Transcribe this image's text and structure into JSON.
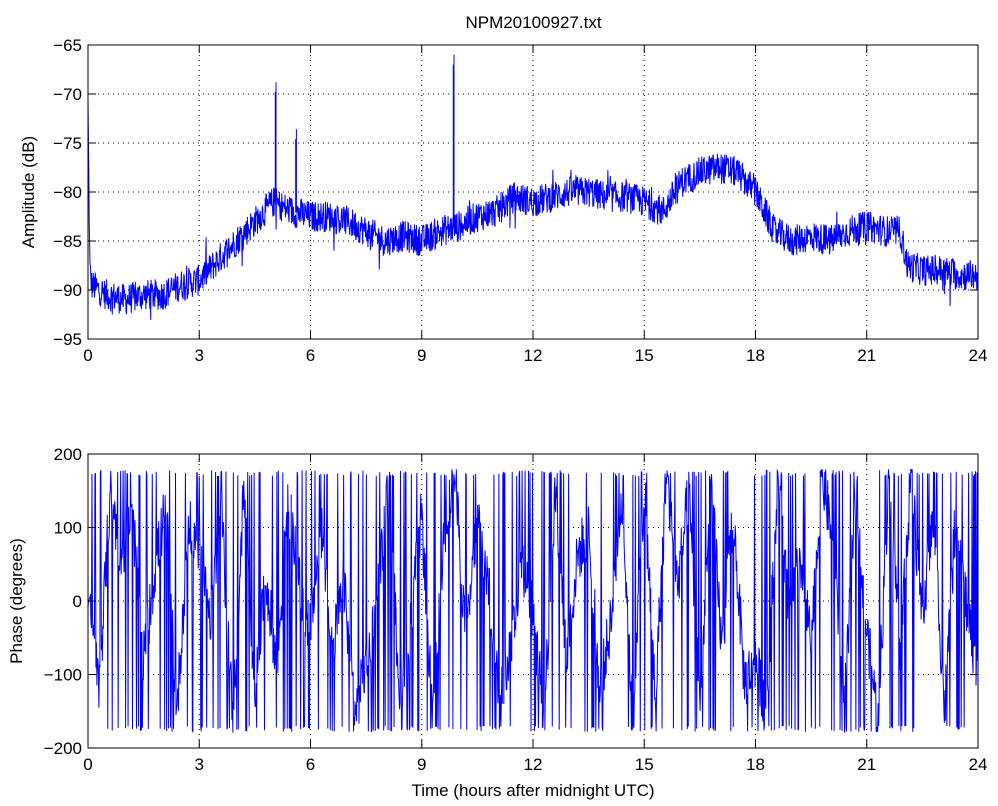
{
  "figure": {
    "title": "NPM20100927.txt"
  },
  "chart_data": [
    {
      "type": "line",
      "title": "NPM20100927.txt",
      "xlabel": "",
      "ylabel": "Amplitude (dB)",
      "xlim": [
        0,
        24
      ],
      "ylim": [
        -95,
        -65
      ],
      "xticks": [
        0,
        3,
        6,
        9,
        12,
        15,
        18,
        21,
        24
      ],
      "yticks": [
        -95,
        -90,
        -85,
        -80,
        -75,
        -70,
        -65
      ],
      "grid": true,
      "color": "#0000ff",
      "series": [
        {
          "x": [
            0,
            0.05,
            0.1,
            0.5,
            1,
            1.5,
            2,
            2.5,
            3,
            3.5,
            4,
            4.5,
            5,
            5.5,
            6,
            6.5,
            7,
            7.5,
            8,
            8.5,
            9,
            9.5,
            10,
            10.5,
            11,
            11.5,
            12,
            12.5,
            13,
            13.5,
            14,
            14.5,
            15,
            15.5,
            16,
            16.5,
            17,
            17.5,
            18,
            18.5,
            19,
            19.5,
            20,
            20.5,
            21,
            21.5,
            21.9,
            22.1,
            22.5,
            23,
            23.5,
            24
          ],
          "y": [
            -71,
            -88,
            -89.5,
            -90.5,
            -91,
            -90.5,
            -90.5,
            -89.5,
            -89,
            -87,
            -85,
            -83,
            -81,
            -82,
            -82.5,
            -82.5,
            -83,
            -84,
            -85,
            -84.5,
            -85,
            -84,
            -83.5,
            -82.5,
            -82,
            -80.5,
            -81,
            -80.5,
            -80,
            -80,
            -80.5,
            -80.5,
            -81,
            -82,
            -79,
            -78,
            -77.5,
            -78,
            -80,
            -84,
            -85,
            -84.5,
            -85,
            -84,
            -83.5,
            -84,
            -84,
            -87.5,
            -88,
            -88,
            -88.5,
            -88.5
          ],
          "spikes": [
            {
              "x": 5.05,
              "y": -69.8
            },
            {
              "x": 5.6,
              "y": -74.6
            },
            {
              "x": 9.85,
              "y": -67
            }
          ]
        }
      ]
    },
    {
      "type": "line",
      "title": "",
      "xlabel": "Time (hours after midnight UTC)",
      "ylabel": "Phase (degrees)",
      "xlim": [
        0,
        24
      ],
      "ylim": [
        -200,
        200
      ],
      "xticks": [
        0,
        3,
        6,
        9,
        12,
        15,
        18,
        21,
        24
      ],
      "yticks": [
        -200,
        -100,
        0,
        100,
        200
      ],
      "grid": true,
      "color": "#0000ff",
      "series": [
        {
          "x": [
            0,
            0.3,
            0.6,
            0.9,
            1.2,
            1.5,
            1.8,
            2.1,
            2.4,
            2.7,
            3,
            3.3,
            3.6,
            3.9,
            4.2,
            4.5,
            4.8,
            5.1,
            5.4,
            5.7,
            6,
            6.3,
            6.6,
            6.9,
            7.2,
            7.5,
            7.8,
            8.1,
            8.4,
            8.7,
            9,
            9.3,
            9.6,
            9.9,
            10.2,
            10.5,
            10.8,
            11.1,
            11.4,
            11.7,
            12,
            12.3,
            12.6,
            12.9,
            13.2,
            13.5,
            13.8,
            14.1,
            14.4,
            14.7,
            15,
            15.3,
            15.6,
            15.9,
            16.2,
            16.5,
            16.8,
            17.1,
            17.4,
            17.7,
            18,
            18.3,
            18.6,
            18.9,
            19.2,
            19.5,
            19.8,
            20.1,
            20.4,
            20.7,
            21,
            21.3,
            21.6,
            21.9,
            22.2,
            22.5,
            22.8,
            23.1,
            23.4,
            23.7,
            24
          ],
          "y": [
            0,
            -120,
            150,
            60,
            120,
            -80,
            40,
            130,
            -150,
            100,
            80,
            -20,
            120,
            -160,
            150,
            -120,
            30,
            -90,
            140,
            20,
            -40,
            100,
            -60,
            20,
            -150,
            -90,
            10,
            150,
            -120,
            -30,
            120,
            -170,
            90,
            170,
            -60,
            120,
            20,
            -140,
            -60,
            60,
            -20,
            -160,
            150,
            -80,
            60,
            100,
            -120,
            -30,
            140,
            -170,
            160,
            -130,
            170,
            20,
            150,
            -140,
            160,
            -70,
            120,
            -110,
            -80,
            -150,
            170,
            -20,
            60,
            -60,
            170,
            80,
            -150,
            150,
            -40,
            -160,
            160,
            -60,
            170,
            -30,
            120,
            -150,
            120,
            -10,
            -100
          ]
        }
      ]
    }
  ]
}
